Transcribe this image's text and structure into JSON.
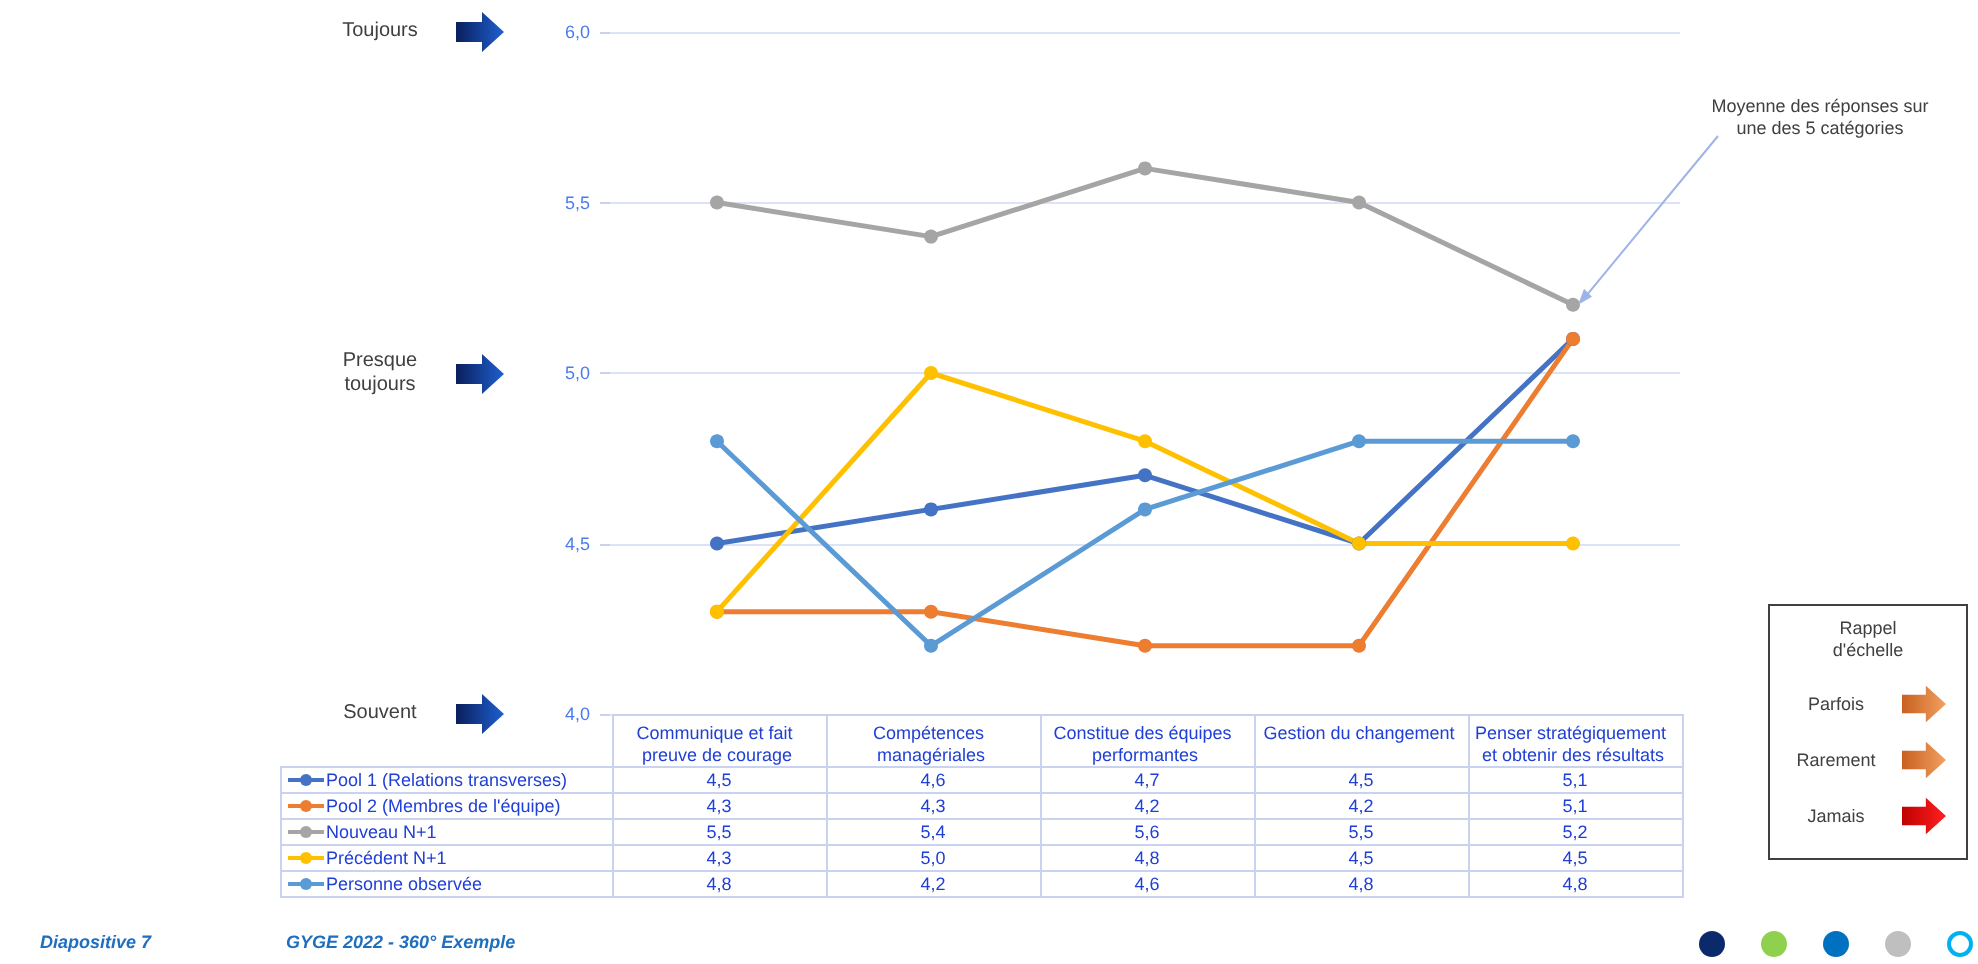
{
  "chart_data": {
    "type": "line",
    "categories": [
      "Communique et fait preuve de courage",
      "Compétences managériales",
      "Constitue des équipes performantes",
      "Gestion du changement",
      "Penser stratégiquement et obtenir des résultats"
    ],
    "series": [
      {
        "name": "Pool 1 (Relations transverses)",
        "color": "#4472c4",
        "values": [
          4.5,
          4.6,
          4.7,
          4.5,
          5.1
        ],
        "value_labels": [
          "4,5",
          "4,6",
          "4,7",
          "4,5",
          "5,1"
        ]
      },
      {
        "name": "Pool 2 (Membres de l'équipe)",
        "color": "#ed7d31",
        "values": [
          4.3,
          4.3,
          4.2,
          4.2,
          5.1
        ],
        "value_labels": [
          "4,3",
          "4,3",
          "4,2",
          "4,2",
          "5,1"
        ]
      },
      {
        "name": "Nouveau N+1",
        "color": "#a5a5a5",
        "values": [
          5.5,
          5.4,
          5.6,
          5.5,
          5.2
        ],
        "value_labels": [
          "5,5",
          "5,4",
          "5,6",
          "5,5",
          "5,2"
        ]
      },
      {
        "name": "Précédent N+1",
        "color": "#ffc000",
        "values": [
          4.3,
          5.0,
          4.8,
          4.5,
          4.5
        ],
        "value_labels": [
          "4,3",
          "5,0",
          "4,8",
          "4,5",
          "4,5"
        ]
      },
      {
        "name": "Personne observée",
        "color": "#5b9bd5",
        "values": [
          4.8,
          4.2,
          4.6,
          4.8,
          4.8
        ],
        "value_labels": [
          "4,8",
          "4,2",
          "4,6",
          "4,8",
          "4,8"
        ]
      }
    ],
    "ylim": [
      4,
      6
    ],
    "yticks": [
      {
        "value": 4,
        "label": "4,0"
      },
      {
        "value": 4.5,
        "label": "4,5"
      },
      {
        "value": 5,
        "label": "5,0"
      },
      {
        "value": 5.5,
        "label": "5,5"
      },
      {
        "value": 6,
        "label": "6,0"
      }
    ],
    "grid": "y",
    "legend": "bottom left",
    "marker": "circle",
    "line_style": "solid",
    "annotations": [
      "Toujours",
      "Presque toujours",
      "Souvent",
      {
        "text": "Moyenne des réponses sur une des 5 catégories",
        "x": "Penser stratégiquement et obtenir des résultats",
        "y": 5.2
      },
      "Rappel d'échelle",
      "Parfois",
      "Rarement",
      "Jamais",
      "Diapositive 7",
      "GYGE 2022 - 360° Exemple"
    ]
  }
}
